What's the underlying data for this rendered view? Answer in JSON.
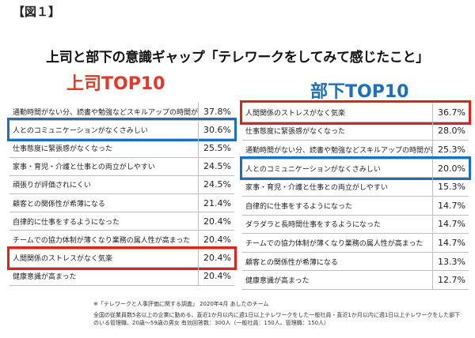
{
  "figure_label": "【図１】",
  "title": "上司と部下の意識ギャップ「テレワークをしてみて感じたこと」",
  "chart_data": [
    {
      "type": "table",
      "title": "上司TOP10",
      "categories": [
        "通勤時間がない分、読書や勉強などスキルアップの時間が持てる",
        "人とのコミュニケーションがなくさみしい",
        "仕事態度に緊張感がなくなった",
        "家事・育児・介護と仕事との両立がしやすい",
        "頑張りが評価されにくい",
        "顧客との関係性が希薄になる",
        "自律的に仕事をするようになった",
        "チームでの協力体制が薄くなり業務の属人性が高まった",
        "人間関係のストレスがなく気楽",
        "健康意識が高まった"
      ],
      "display_values": [
        "37.8%",
        "30.6%",
        "25.5%",
        "24.5%",
        "24.5%",
        "21.4%",
        "20.4%",
        "20.4%",
        "20.4%",
        "20.4%"
      ],
      "values": [
        37.8,
        30.6,
        25.5,
        24.5,
        24.5,
        21.4,
        20.4,
        20.4,
        20.4,
        20.4
      ],
      "highlight_blue": [
        1
      ],
      "highlight_red": [
        8
      ],
      "colors": {
        "title": "#e03a2b",
        "blue": "#1f6fb8",
        "red": "#e0211c"
      }
    },
    {
      "type": "table",
      "title": "部下TOP10",
      "categories": [
        "人間関係のストレスがなく気楽",
        "仕事態度に緊張感がなくなった",
        "通勤時間がない分、読書や勉強などスキルアップの時間が持てる",
        "人とのコミュニケーションがなくさみしい",
        "家事・育児・介護と仕事との両立がしやすい",
        "自律的に仕事をするようになった",
        "ダラダラと長時間仕事をするようになった",
        "チームでの協力体制が薄くなり業務の属人性が高まった",
        "顧客との関係性が希薄になる",
        "健康意識が高まった"
      ],
      "display_values": [
        "36.7%",
        "28.0%",
        "25.3%",
        "20.0%",
        "15.3%",
        "14.7%",
        "14.7%",
        "14.7%",
        "13.3%",
        "12.7%"
      ],
      "values": [
        36.7,
        28.0,
        25.3,
        20.0,
        15.3,
        14.7,
        14.7,
        14.7,
        13.3,
        12.7
      ],
      "highlight_blue": [
        3
      ],
      "highlight_red": [
        0
      ],
      "colors": {
        "title": "#1e6fb5",
        "blue": "#1f6fb8",
        "red": "#e0211c"
      }
    }
  ],
  "source": "※「テレワークと人事評価に関する調査」 2020年4月 あしたのチーム",
  "note": "全国の従業員数5名以上の企業に勤める、直近1か月以内に週1日以上テレワークをした一般社員・直近1か月以内に週1日以上テレワークをした部下のいる管理職、20歳～59歳の男女 有効回答数：300人（一般社員：150人、管理職：150人）"
}
